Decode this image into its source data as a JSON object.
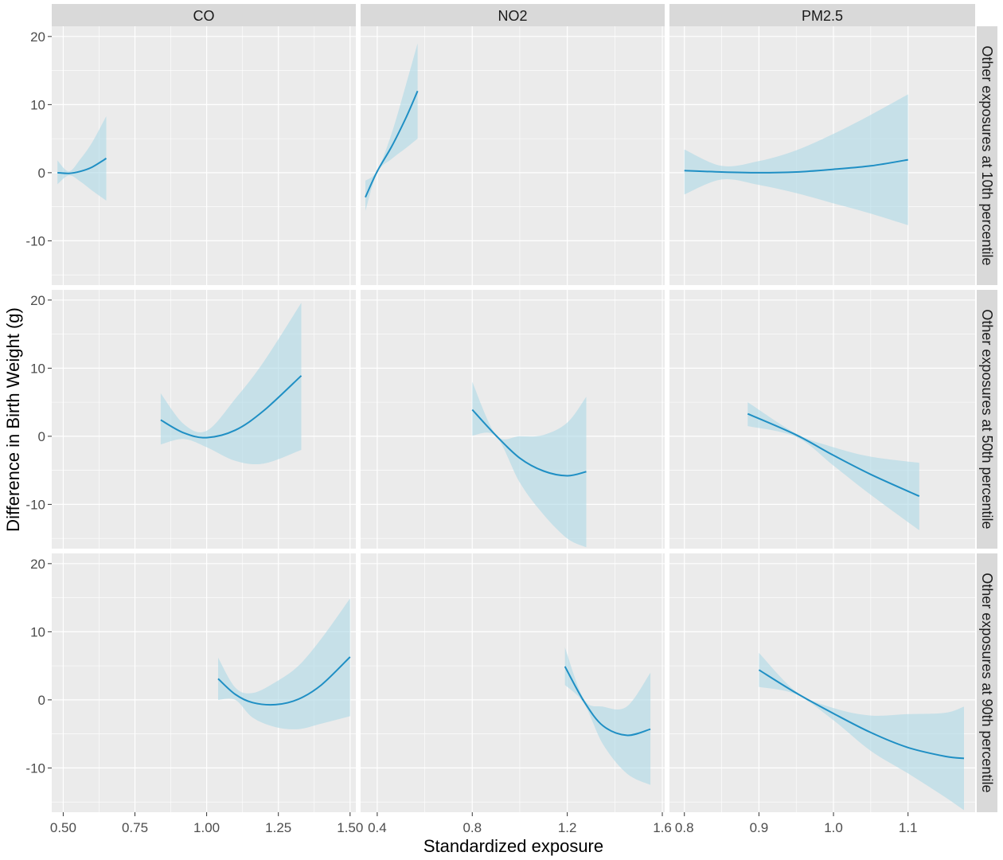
{
  "chart_data": {
    "type": "line",
    "xlabel": "Standardized exposure",
    "ylabel": "Difference in Birth Weight (g)",
    "ylim": [
      -16.5,
      21.5
    ],
    "yticks": [
      -10,
      0,
      10,
      20
    ],
    "grid": true,
    "colors": {
      "panel_bg": "#ebebeb",
      "grid": "#ffffff",
      "strip_bg": "#d9d9d9",
      "line": "#1f8fc4",
      "ribbon": "#add8e6"
    },
    "columns": [
      {
        "label": "CO",
        "xlim": [
          0.46,
          1.52
        ],
        "xticks": [
          0.5,
          0.75,
          1.0,
          1.25,
          1.5
        ],
        "xtick_labels": [
          "0.50",
          "0.75",
          "1.00",
          "1.25",
          "1.50"
        ]
      },
      {
        "label": "NO2",
        "xlim": [
          0.33,
          1.61
        ],
        "xticks": [
          0.4,
          0.8,
          1.2,
          1.6
        ],
        "xtick_labels": [
          "0.4",
          "0.8",
          "1.2",
          "1.6"
        ]
      },
      {
        "label": "PM2.5",
        "xlim": [
          0.78,
          1.19
        ],
        "xticks": [
          0.8,
          0.9,
          1.0,
          1.1
        ],
        "xtick_labels": [
          "0.8",
          "0.9",
          "1.0",
          "1.1"
        ]
      }
    ],
    "rows": [
      {
        "label": "Other exposures at 10th percentile"
      },
      {
        "label": "Other exposures at 50th percentile"
      },
      {
        "label": "Other exposures at 90th percentile"
      }
    ],
    "panels": [
      [
        {
          "x": [
            0.48,
            0.52,
            0.56,
            0.6,
            0.65
          ],
          "y": [
            0,
            -0.1,
            0.2,
            0.8,
            2.1
          ],
          "lower": [
            -1.7,
            -0.4,
            -1.3,
            -2.6,
            -4.1
          ],
          "upper": [
            1.8,
            0.2,
            2.0,
            4.4,
            8.3
          ]
        },
        {
          "x": [
            0.35,
            0.4,
            0.46,
            0.52,
            0.57
          ],
          "y": [
            -3.6,
            0.2,
            3.8,
            8.0,
            12.0
          ],
          "lower": [
            -5.6,
            0.0,
            2.0,
            3.6,
            5.0
          ],
          "upper": [
            -1.2,
            0.3,
            5.7,
            12.8,
            19.0
          ]
        },
        {
          "x": [
            0.8,
            0.85,
            0.9,
            0.95,
            1.0,
            1.05,
            1.1
          ],
          "y": [
            0.3,
            0.1,
            0,
            0.1,
            0.5,
            1.0,
            1.9
          ],
          "lower": [
            -3.2,
            -1.0,
            -1.8,
            -3.0,
            -4.5,
            -6.0,
            -7.7
          ],
          "upper": [
            3.4,
            1.0,
            1.7,
            3.3,
            5.7,
            8.5,
            11.5
          ]
        }
      ],
      [
        {
          "x": [
            0.84,
            0.92,
            1.0,
            1.1,
            1.2,
            1.33
          ],
          "y": [
            2.4,
            0.5,
            -0.2,
            0.9,
            3.8,
            8.9
          ],
          "lower": [
            -1.2,
            -0.4,
            -1.6,
            -3.6,
            -4.0,
            -2.0
          ],
          "upper": [
            6.3,
            1.8,
            0.8,
            5.5,
            11.0,
            19.6
          ]
        },
        {
          "x": [
            0.8,
            0.9,
            1.0,
            1.1,
            1.2,
            1.28
          ],
          "y": [
            3.9,
            0.1,
            -3.2,
            -5.1,
            -5.8,
            -5.2
          ],
          "lower": [
            0.1,
            0.0,
            -6.8,
            -11.5,
            -15.0,
            -16.3
          ],
          "upper": [
            8.0,
            0.2,
            0.0,
            0.2,
            2.0,
            5.8
          ]
        },
        {
          "x": [
            0.885,
            0.95,
            1.0,
            1.05,
            1.115
          ],
          "y": [
            3.3,
            0.2,
            -2.8,
            -5.6,
            -8.8
          ],
          "lower": [
            1.5,
            -0.1,
            -4.3,
            -8.6,
            -13.8
          ],
          "upper": [
            5.0,
            0.4,
            -1.6,
            -3.0,
            -3.9
          ]
        }
      ],
      [
        {
          "x": [
            1.04,
            1.1,
            1.16,
            1.24,
            1.32,
            1.4,
            1.5
          ],
          "y": [
            3.1,
            0.8,
            -0.4,
            -0.7,
            0.1,
            2.2,
            6.3
          ],
          "lower": [
            0.0,
            0.0,
            -2.6,
            -4.0,
            -4.3,
            -3.5,
            -2.4
          ],
          "upper": [
            6.2,
            1.8,
            1.0,
            2.6,
            5.0,
            9.0,
            14.9
          ]
        },
        {
          "x": [
            1.19,
            1.27,
            1.35,
            1.45,
            1.55
          ],
          "y": [
            4.9,
            -0.2,
            -3.8,
            -5.2,
            -4.3
          ],
          "lower": [
            2.2,
            -0.5,
            -6.5,
            -10.8,
            -12.5
          ],
          "upper": [
            7.7,
            0.1,
            -1.0,
            -1.0,
            4.0
          ]
        },
        {
          "x": [
            0.9,
            0.95,
            1.0,
            1.05,
            1.1,
            1.15,
            1.175
          ],
          "y": [
            4.4,
            1.0,
            -2.0,
            -4.8,
            -7.0,
            -8.3,
            -8.6
          ],
          "lower": [
            1.9,
            0.8,
            -3.0,
            -7.5,
            -10.8,
            -14.3,
            -16.2
          ],
          "upper": [
            6.9,
            1.2,
            -1.2,
            -2.3,
            -2.1,
            -1.9,
            -1.0
          ]
        }
      ]
    ]
  }
}
